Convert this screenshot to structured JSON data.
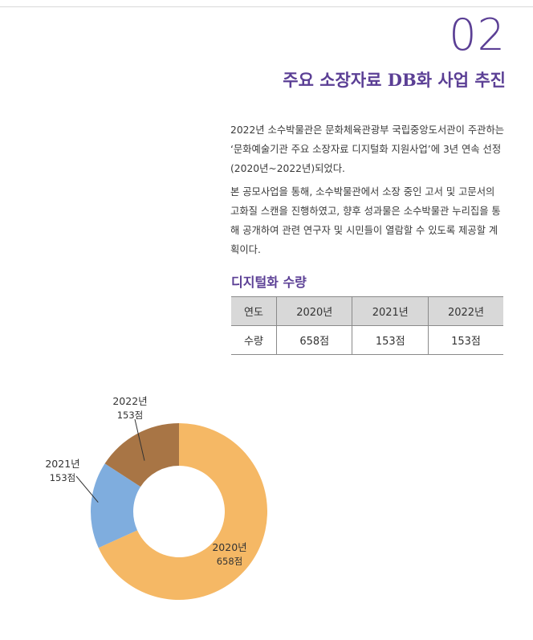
{
  "header": {
    "number": "02",
    "title": "주요 소장자료 DB화 사업 추진"
  },
  "body": {
    "paragraph1": "2022년 소수박물관은 문화체육관광부 국립중앙도서관이 주관하는 ‘문화예술기관 주요 소장자료 디지털화 지원사업’에 3년 연속 선정 (2020년~2022년)되었다.",
    "paragraph2": "본 공모사업을 통해, 소수박물관에서 소장 중인 고서 및 고문서의 고화질 스캔을 진행하였고, 향후 성과물은 소수박물관 누리집을 통해 공개하여 관련 연구자 및 시민들이 열람할 수 있도록 제공할 계획이다."
  },
  "table": {
    "title": "디지털화 수량",
    "headers": [
      "연도",
      "2020년",
      "2021년",
      "2022년"
    ],
    "row": [
      "수량",
      "658점",
      "153점",
      "153점"
    ]
  },
  "chart_data": {
    "type": "pie",
    "donut": true,
    "slices": [
      {
        "label": "2020년",
        "value": 658,
        "display": "658점",
        "color": "#f5b865"
      },
      {
        "label": "2021년",
        "value": 153,
        "display": "153점",
        "color": "#7fadde"
      },
      {
        "label": "2022년",
        "value": 153,
        "display": "153점",
        "color": "#a87545"
      }
    ]
  }
}
